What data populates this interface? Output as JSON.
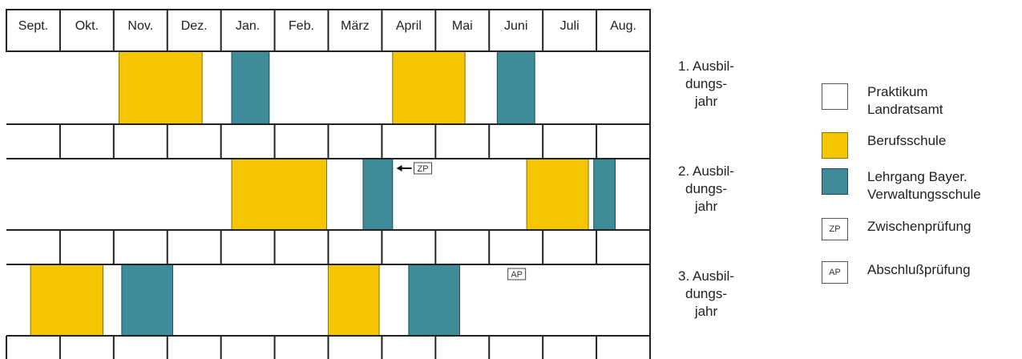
{
  "months": [
    "Sept.",
    "Okt.",
    "Nov.",
    "Dez.",
    "Jan.",
    "Feb.",
    "März",
    "April",
    "Mai",
    "Juni",
    "Juli",
    "Aug."
  ],
  "colors": {
    "praktikum": "#ffffff",
    "berufsschule": "#f5c500",
    "lehrgang": "#3e8c9a",
    "grid": "#222222"
  },
  "years": [
    {
      "lines": [
        "1. Ausbil-",
        "dungs-",
        "jahr"
      ]
    },
    {
      "lines": [
        "2. Ausbil-",
        "dungs-",
        "jahr"
      ]
    },
    {
      "lines": [
        "3. Ausbil-",
        "dungs-",
        "jahr"
      ]
    }
  ],
  "blocks": [
    {
      "year": 1,
      "type": "berufsschule",
      "start": 2.1,
      "end": 3.65
    },
    {
      "year": 1,
      "type": "lehrgang",
      "start": 4.2,
      "end": 4.9
    },
    {
      "year": 1,
      "type": "berufsschule",
      "start": 7.2,
      "end": 8.55
    },
    {
      "year": 1,
      "type": "lehrgang",
      "start": 9.15,
      "end": 9.85
    },
    {
      "year": 2,
      "type": "berufsschule",
      "start": 4.2,
      "end": 5.97
    },
    {
      "year": 2,
      "type": "lehrgang",
      "start": 6.65,
      "end": 7.2
    },
    {
      "year": 2,
      "type": "berufsschule",
      "start": 9.7,
      "end": 10.85
    },
    {
      "year": 2,
      "type": "lehrgang",
      "start": 10.95,
      "end": 11.35
    },
    {
      "year": 3,
      "type": "berufsschule",
      "start": 0.45,
      "end": 1.8
    },
    {
      "year": 3,
      "type": "lehrgang",
      "start": 2.15,
      "end": 3.1
    },
    {
      "year": 3,
      "type": "berufsschule",
      "start": 6.0,
      "end": 6.95
    },
    {
      "year": 3,
      "type": "lehrgang",
      "start": 7.5,
      "end": 8.45
    }
  ],
  "exams": [
    {
      "label": "ZP",
      "year": 2,
      "month": 7.6,
      "arrow": true
    },
    {
      "label": "AP",
      "year": 3,
      "month": 9.35,
      "arrow": false
    }
  ],
  "legend": [
    {
      "swatch": "praktikum",
      "lines": [
        "Praktikum",
        "Landratsamt"
      ]
    },
    {
      "swatch": "berufsschule",
      "lines": [
        "Berufsschule"
      ]
    },
    {
      "swatch": "lehrgang",
      "lines": [
        "Lehrgang Bayer.",
        "Verwaltungsschule"
      ]
    },
    {
      "swatch": "abbr",
      "abbr": "ZP",
      "lines": [
        "Zwischenprüfung"
      ]
    },
    {
      "swatch": "abbr",
      "abbr": "AP",
      "lines": [
        "Abschlußprüfung"
      ]
    }
  ]
}
